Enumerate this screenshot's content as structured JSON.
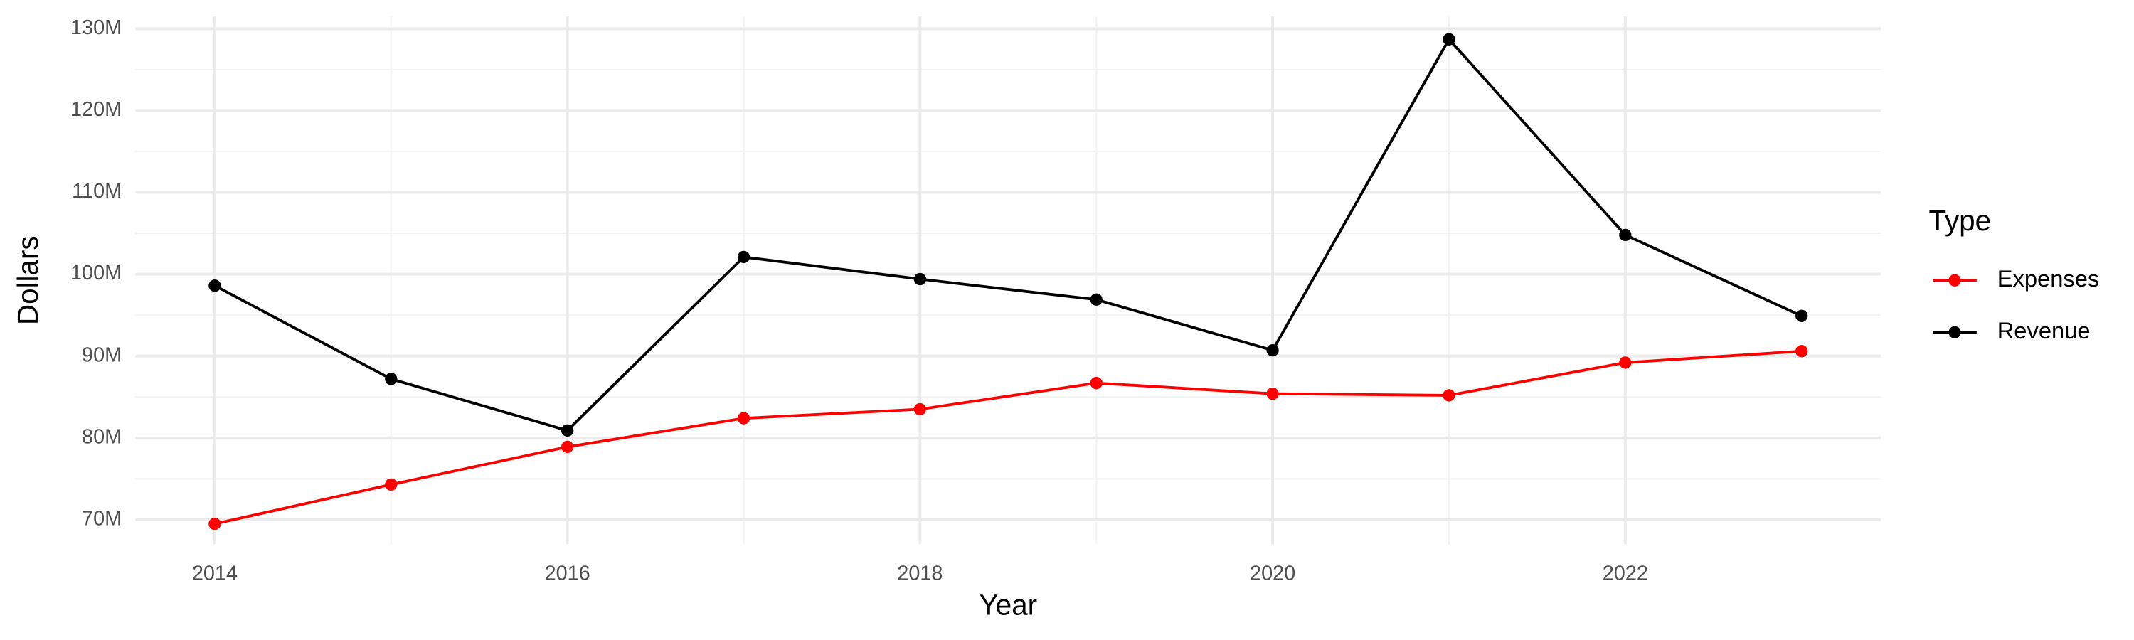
{
  "chart_data": {
    "type": "line",
    "x_label": "Year",
    "y_label": "Dollars",
    "legend_title": "Type",
    "x": [
      2014,
      2015,
      2016,
      2017,
      2018,
      2019,
      2020,
      2021,
      2022,
      2023
    ],
    "series": [
      {
        "name": "Expenses",
        "color": "#ff0000",
        "values": [
          69500000,
          74300000,
          78900000,
          82400000,
          83500000,
          86700000,
          85400000,
          85200000,
          89200000,
          90600000
        ]
      },
      {
        "name": "Revenue",
        "color": "#000000",
        "values": [
          98600000,
          87200000,
          80900000,
          102100000,
          99400000,
          96900000,
          90700000,
          128700000,
          104800000,
          94900000
        ]
      }
    ],
    "xlim": [
      2013.55,
      2023.45
    ],
    "xticks": [
      2014,
      2016,
      2018,
      2020,
      2022
    ],
    "ylim": [
      67000000,
      131500000
    ],
    "yticks": [
      {
        "value": 70000000,
        "label": "70M"
      },
      {
        "value": 80000000,
        "label": "80M"
      },
      {
        "value": 90000000,
        "label": "90M"
      },
      {
        "value": 100000000,
        "label": "100M"
      },
      {
        "value": 110000000,
        "label": "110M"
      },
      {
        "value": 120000000,
        "label": "120M"
      },
      {
        "value": 130000000,
        "label": "130M"
      }
    ],
    "grid": true,
    "legend_position": "right"
  }
}
